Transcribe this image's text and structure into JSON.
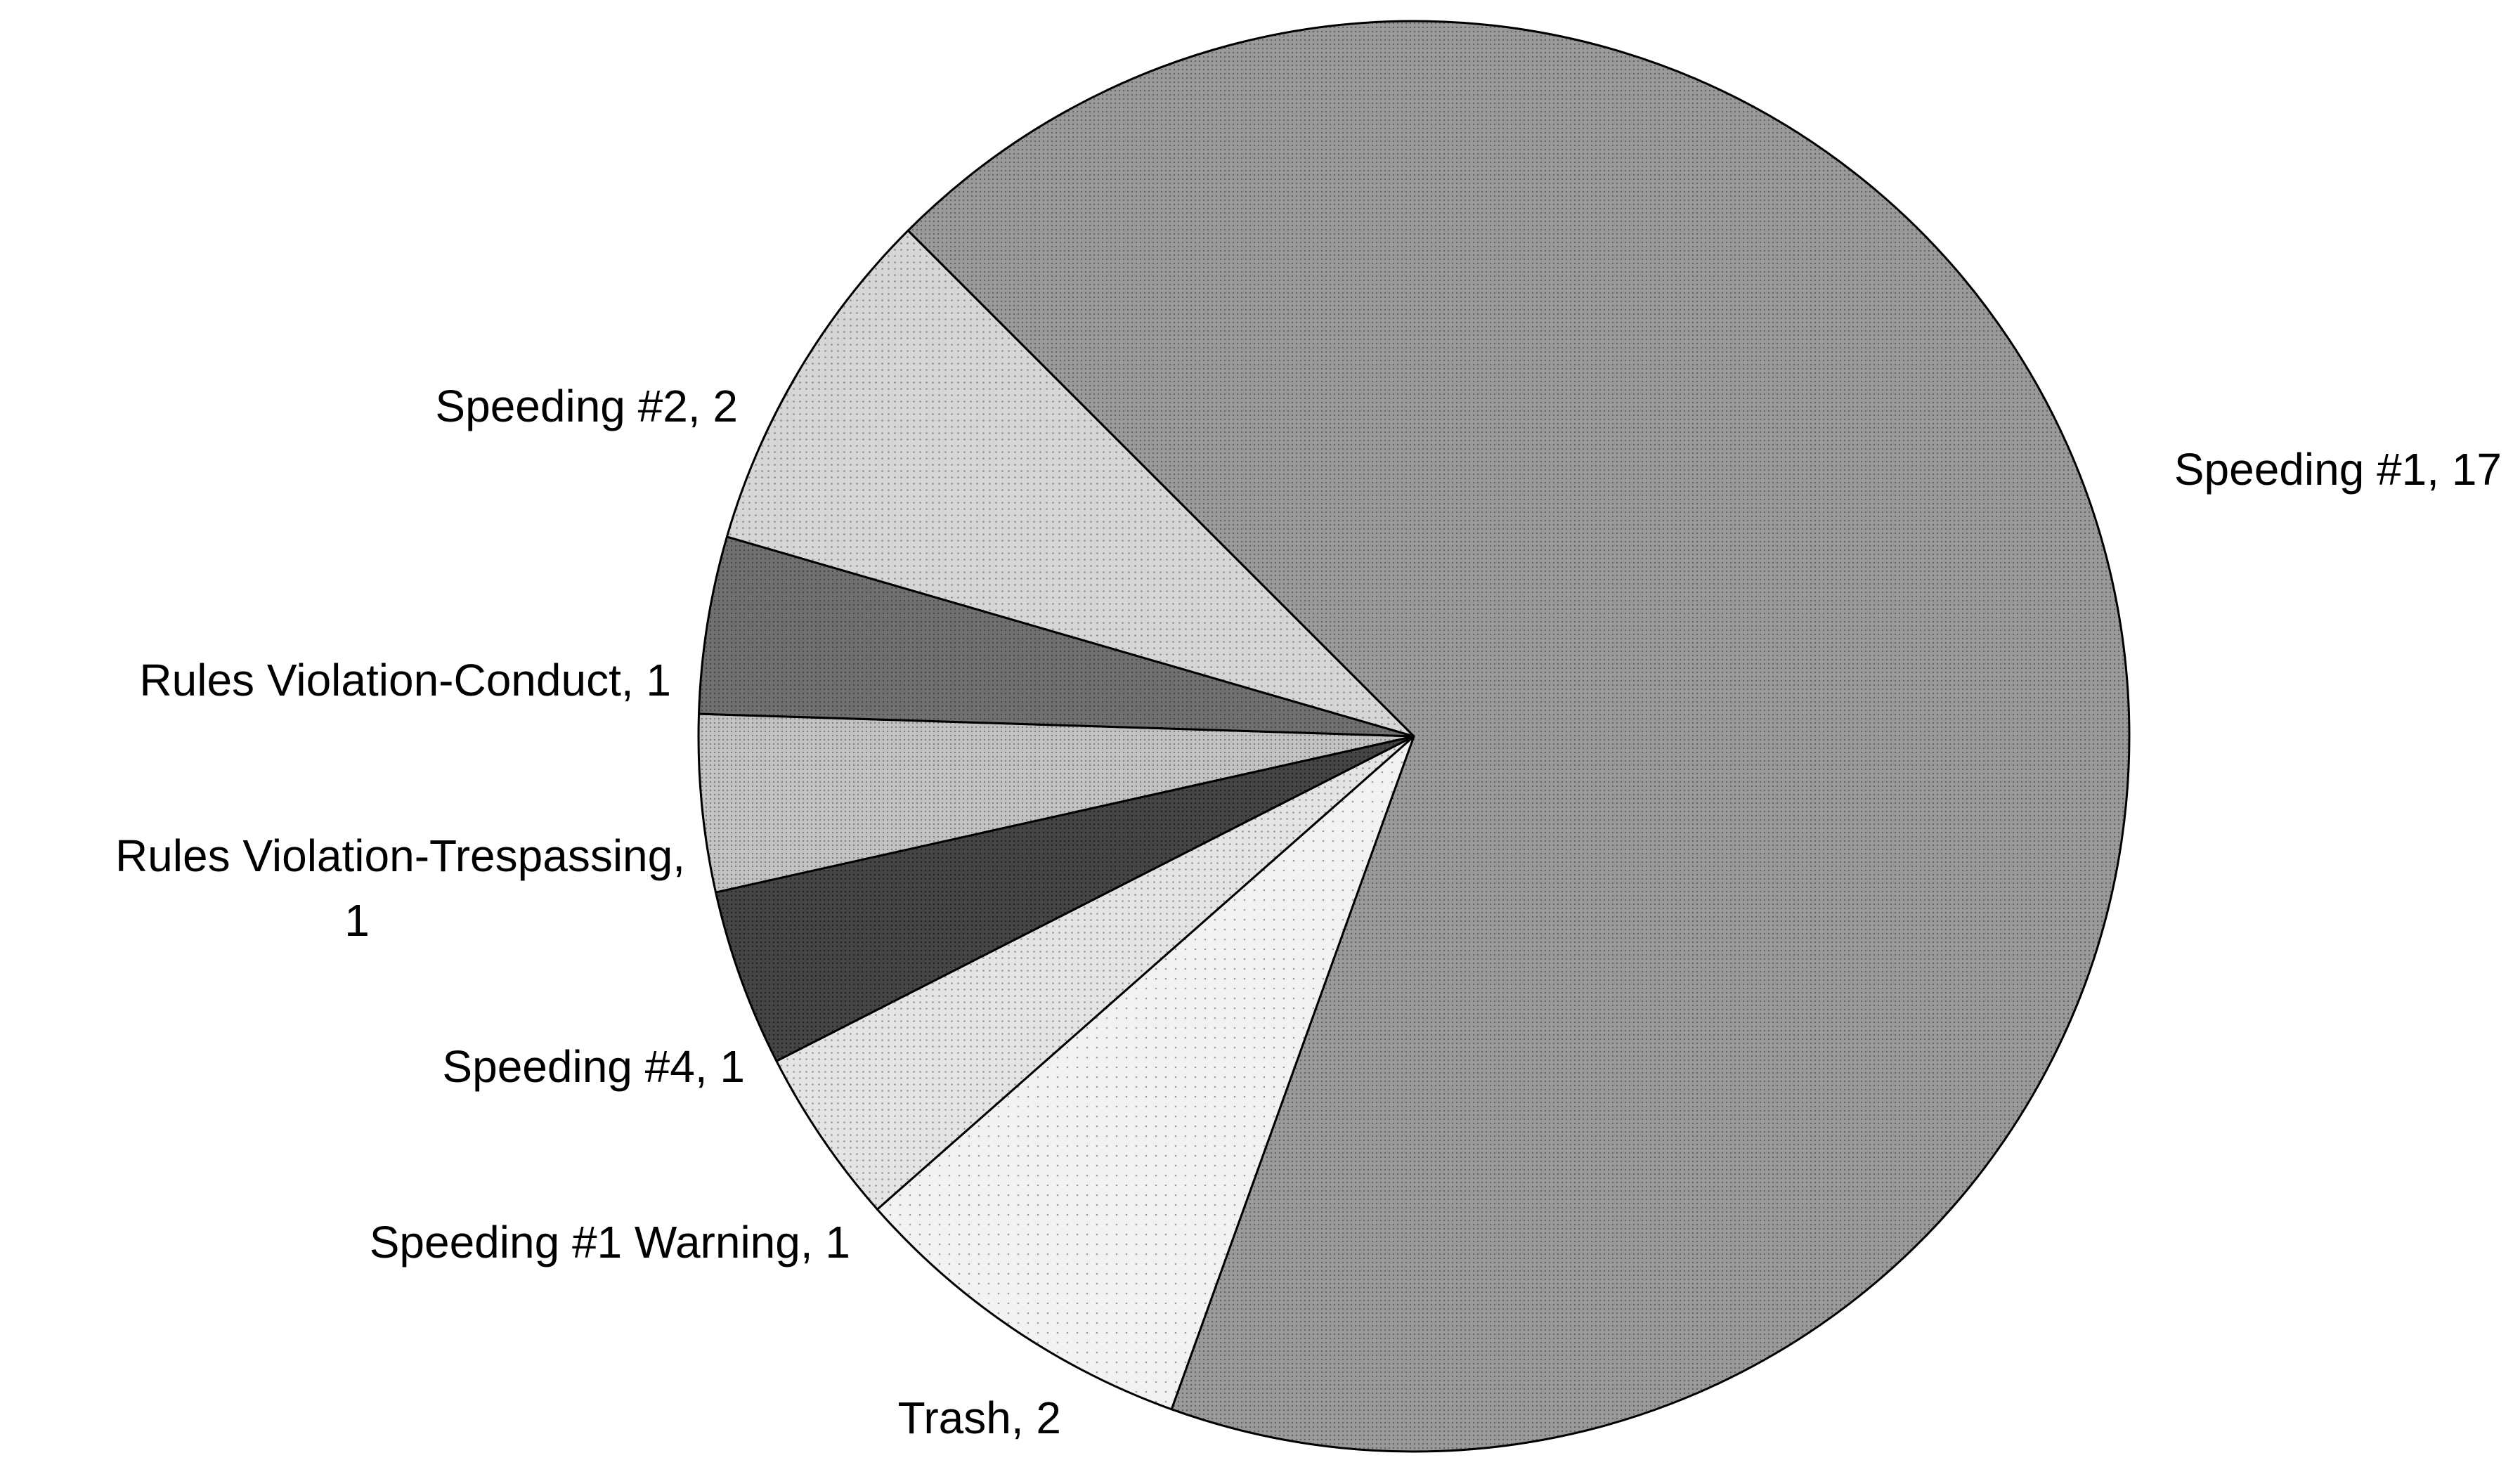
{
  "chart_data": {
    "type": "pie",
    "slices": [
      {
        "label": "Speeding #1",
        "value": 17,
        "text": [
          "Speeding #1, 17"
        ],
        "color": "#9a9a9a",
        "pattern": "dense"
      },
      {
        "label": "Trash",
        "value": 2,
        "text": [
          "Trash, 2"
        ],
        "color": "#f2f2f2",
        "pattern": "sparse"
      },
      {
        "label": "Speeding #1 Warning",
        "value": 1,
        "text": [
          "Speeding #1 Warning, 1"
        ],
        "color": "#e4e4e4",
        "pattern": "medium"
      },
      {
        "label": "Speeding #4",
        "value": 1,
        "text": [
          "Speeding #4, 1"
        ],
        "color": "#454545",
        "pattern": "dense"
      },
      {
        "label": "Rules Violation-Trespassing",
        "value": 1,
        "text": [
          "Rules Violation-Trespassing,",
          "1"
        ],
        "color": "#c3c3c3",
        "pattern": "dense"
      },
      {
        "label": "Rules Violation-Conduct",
        "value": 1,
        "text": [
          "Rules Violation-Conduct, 1"
        ],
        "color": "#707070",
        "pattern": "dense"
      },
      {
        "label": "Speeding #2",
        "value": 2,
        "text": [
          "Speeding #2, 2"
        ],
        "color": "#d6d6d6",
        "pattern": "medium"
      }
    ],
    "total": 25,
    "legend": "none",
    "title": ""
  }
}
